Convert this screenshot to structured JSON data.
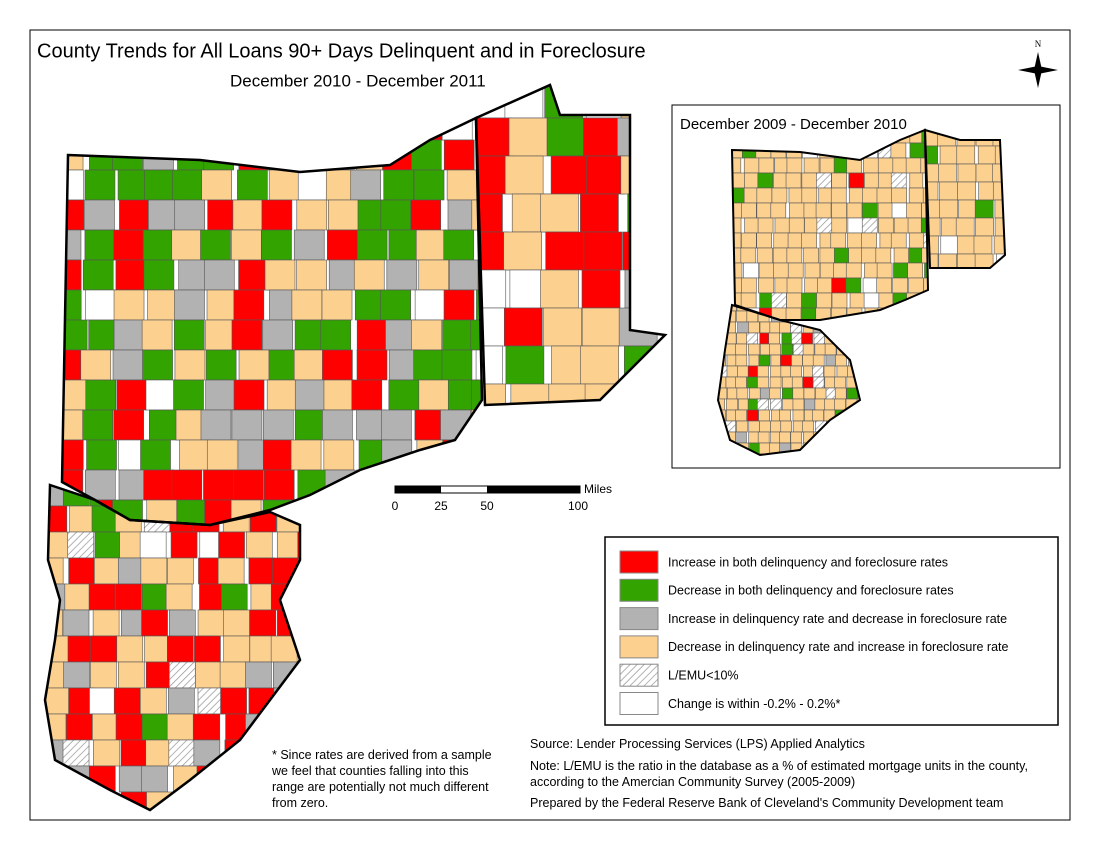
{
  "header": {
    "title": "County Trends for All Loans 90+ Days Delinquent and in Foreclosure",
    "subtitle": "December 2010 - December 2011"
  },
  "north_arrow": {
    "label": "N"
  },
  "inset": {
    "title": "December 2009 - December 2010"
  },
  "scale_bar": {
    "unit": "Miles",
    "ticks": [
      "0",
      "25",
      "50",
      "100"
    ]
  },
  "legend": {
    "items": [
      {
        "label": "Increase in both delinquency and foreclosure rates",
        "color": "#ff0000"
      },
      {
        "label": "Decrease in both delinquency and foreclosure rates",
        "color": "#33a300"
      },
      {
        "label": "Increase in delinquency rate and decrease in foreclosure rate",
        "color": "#b2b2b2"
      },
      {
        "label": "Decrease in delinquency rate and increase in foreclosure rate",
        "color": "#fcd08f"
      },
      {
        "label": "L/EMU<10%",
        "pattern": "hatch"
      },
      {
        "label": "Change is within -0.2% - 0.2%*",
        "color": "#ffffff"
      }
    ]
  },
  "footnote": "* Since rates are derived from a sample we feel that counties falling into this range are potentially not much different from zero.",
  "notes": {
    "source": "Source: Lender Processing Services (LPS) Applied Analytics",
    "lemu": "Note: L/EMU is the ratio in the database as a % of estimated mortgage units in the county, according to the Amercian Community Survey (2005-2009)",
    "prepared": "Prepared by the Federal Reserve Bank of Cleveland's Community Development team"
  }
}
